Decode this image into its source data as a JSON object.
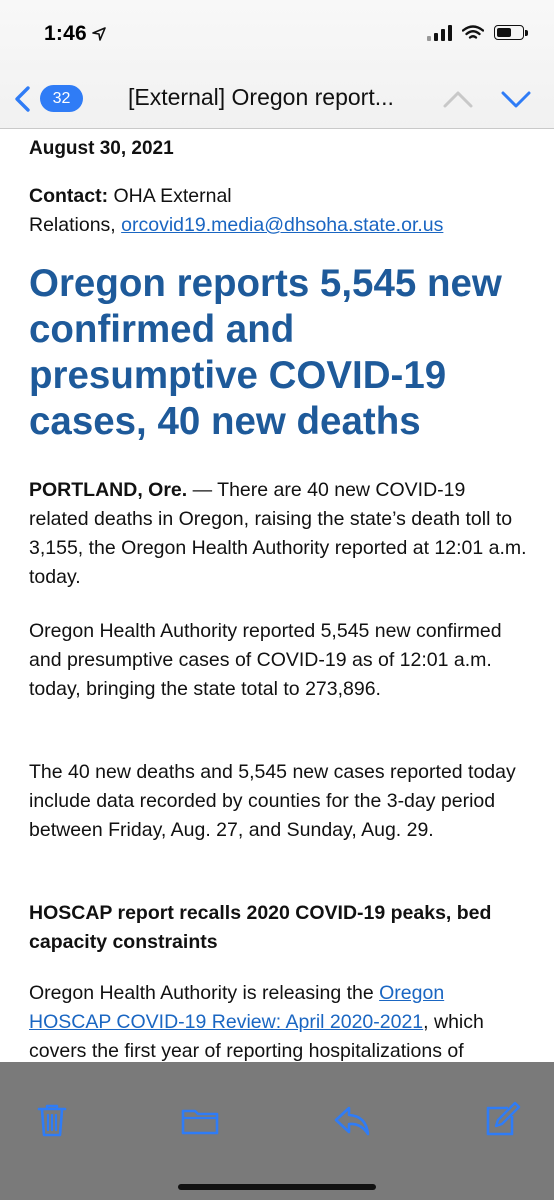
{
  "status": {
    "time": "1:46"
  },
  "nav": {
    "badge": "32",
    "title": "[External] Oregon report..."
  },
  "article": {
    "date": "August 30, 2021",
    "contact_label": "Contact:",
    "contact_text_1": " OHA External",
    "contact_text_2": "Relations, ",
    "contact_email": "orcovid19.media@dhsoha.state.or.us",
    "headline": "Oregon reports 5,545 new confirmed and presumptive COVID-19 cases, 40 new deaths",
    "p1_lead": "PORTLAND, Ore.",
    "p1_text": " — There are 40 new COVID-19 related deaths in Oregon, raising the state’s death toll to 3,155, the Oregon Health Authority reported at 12:01 a.m. today.",
    "p2": "Oregon Health Authority reported 5,545 new confirmed and presumptive cases of COVID-19 as of 12:01 a.m. today, bringing the state total to 273,896.",
    "p3": "The 40 new deaths and 5,545 new cases reported today include data recorded by counties for the 3-day period between Friday, Aug. 27, and Sunday, Aug. 29.",
    "subhead": "HOSCAP report recalls 2020 COVID-19 peaks, bed capacity constraints",
    "p4_text_1": "Oregon Health Authority is releasing the ",
    "p4_link": "Oregon HOSCAP COVID-19 Review: April 2020-2021",
    "p4_text_2": ", which covers the first year of reporting hospitalizations of patients who either tested positive"
  },
  "icons": {
    "back": "chevron-left-icon",
    "up": "chevron-up-icon",
    "down": "chevron-down-icon",
    "trash": "trash-icon",
    "folder": "folder-icon",
    "reply": "reply-icon",
    "compose": "compose-icon"
  },
  "colors": {
    "accent": "#2f7cf6",
    "headline": "#1e5a9a",
    "link": "#1a66c2",
    "toolbar": "#7a7a7a",
    "toolbar_icon": "#2f7cf6"
  }
}
